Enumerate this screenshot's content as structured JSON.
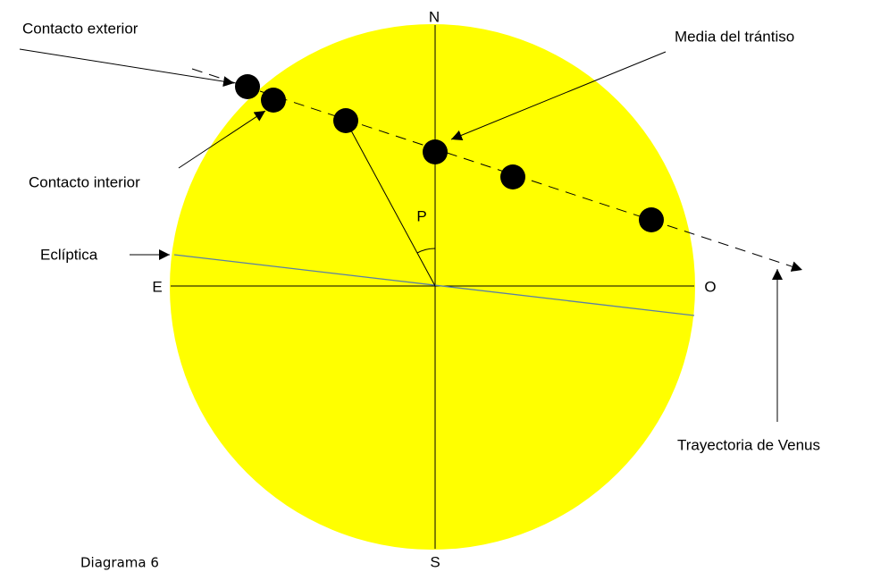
{
  "labels": {
    "north": "N",
    "south": "S",
    "east": "E",
    "west": "O",
    "angle": "P"
  },
  "annotations": {
    "outer_contact": "Contacto exterior",
    "mid_transit": "Media del trántiso",
    "inner_contact": "Contacto interior",
    "ecliptic": "Eclíptica",
    "venus_path": "Trayectoria de Venus"
  },
  "caption": "Diagrama 6"
}
